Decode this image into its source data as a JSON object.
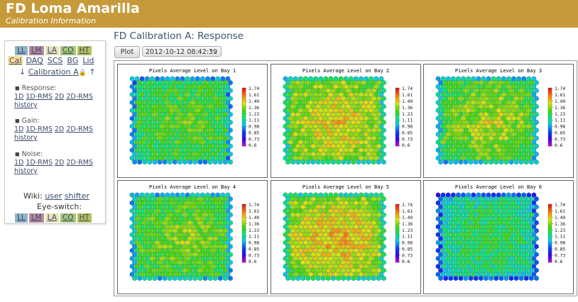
{
  "header": {
    "title": "FD Loma Amarilla",
    "subtitle": "Calibration Information"
  },
  "sidebar": {
    "eye_tabs": [
      "LL",
      "LM",
      "LA",
      "CO",
      "HT"
    ],
    "cal_tabs": [
      "Cal",
      "DAQ",
      "SCS",
      "BG",
      "Lid"
    ],
    "calibration_nav": {
      "down": "↓",
      "link": "Calibration A",
      "up": "↑"
    },
    "sections": [
      {
        "label": "Response:",
        "links": [
          "1D",
          "1D-RMS",
          "2D",
          "2D-RMS",
          "history"
        ]
      },
      {
        "label": "Gain:",
        "links": [
          "1D",
          "1D-RMS",
          "2D",
          "2D-RMS",
          "history"
        ]
      },
      {
        "label": "Noise:",
        "links": [
          "1D",
          "1D-RMS",
          "2D",
          "2D-RMS",
          "history"
        ]
      }
    ],
    "wiki_label": "Wiki:",
    "wiki_links": [
      "user",
      "shifter"
    ],
    "eye_switch_label": "Eye-switch:"
  },
  "main": {
    "title": "FD Calibration A: Response",
    "plot_button": "Plot",
    "date_selected": "2012-10-12 08:42:39"
  },
  "panels": [
    {
      "title": "Pixels Average Level on Bay 1"
    },
    {
      "title": "Pixels Average Level on Bay 2"
    },
    {
      "title": "Pixels Average Level on Bay 3"
    },
    {
      "title": "Pixels Average Level on Bay 4"
    },
    {
      "title": "Pixels Average Level on Bay 5"
    },
    {
      "title": "Pixels Average Level on Bay 6"
    }
  ],
  "colorbar_ticks": [
    "1.74",
    "1.61",
    "1.49",
    "1.36",
    "1.23",
    "1.11",
    "0.98",
    "0.85",
    "0.73",
    "0.6"
  ],
  "colors": {
    "header_bg": "#c69a3a",
    "selected_tab": "#f6dd9a",
    "link": "#3a4a6a",
    "title": "#3d5570"
  }
}
